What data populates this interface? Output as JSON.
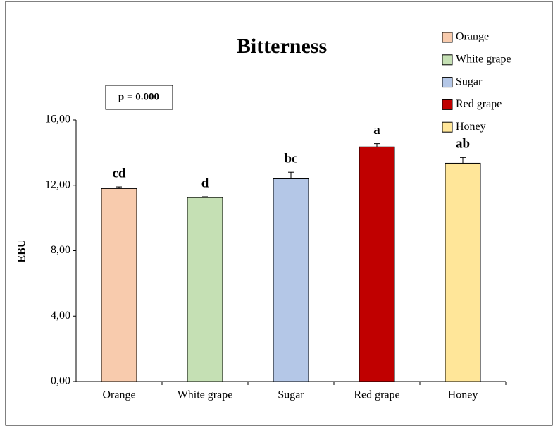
{
  "chart_data": {
    "type": "bar",
    "title": "Bitterness",
    "annotation": "p = 0.000",
    "y_label": "EBU",
    "categories": [
      "Orange",
      "White grape",
      "Sugar",
      "Red grape",
      "Honey"
    ],
    "values": [
      11.8,
      11.25,
      12.4,
      14.35,
      13.35
    ],
    "errors": [
      0.1,
      0.05,
      0.4,
      0.2,
      0.35
    ],
    "letters": [
      "cd",
      "d",
      "bc",
      "a",
      "ab"
    ],
    "colors": [
      "#f8cbad",
      "#c5e0b4",
      "#b4c7e7",
      "#c00000",
      "#ffe699"
    ],
    "ylim": [
      0,
      16
    ],
    "yticks": [
      {
        "value": 0,
        "label": "0,00"
      },
      {
        "value": 4,
        "label": "4,00"
      },
      {
        "value": 8,
        "label": "8,00"
      },
      {
        "value": 12,
        "label": "12,00"
      },
      {
        "value": 16,
        "label": "16,00"
      }
    ],
    "legend": "top-right"
  }
}
